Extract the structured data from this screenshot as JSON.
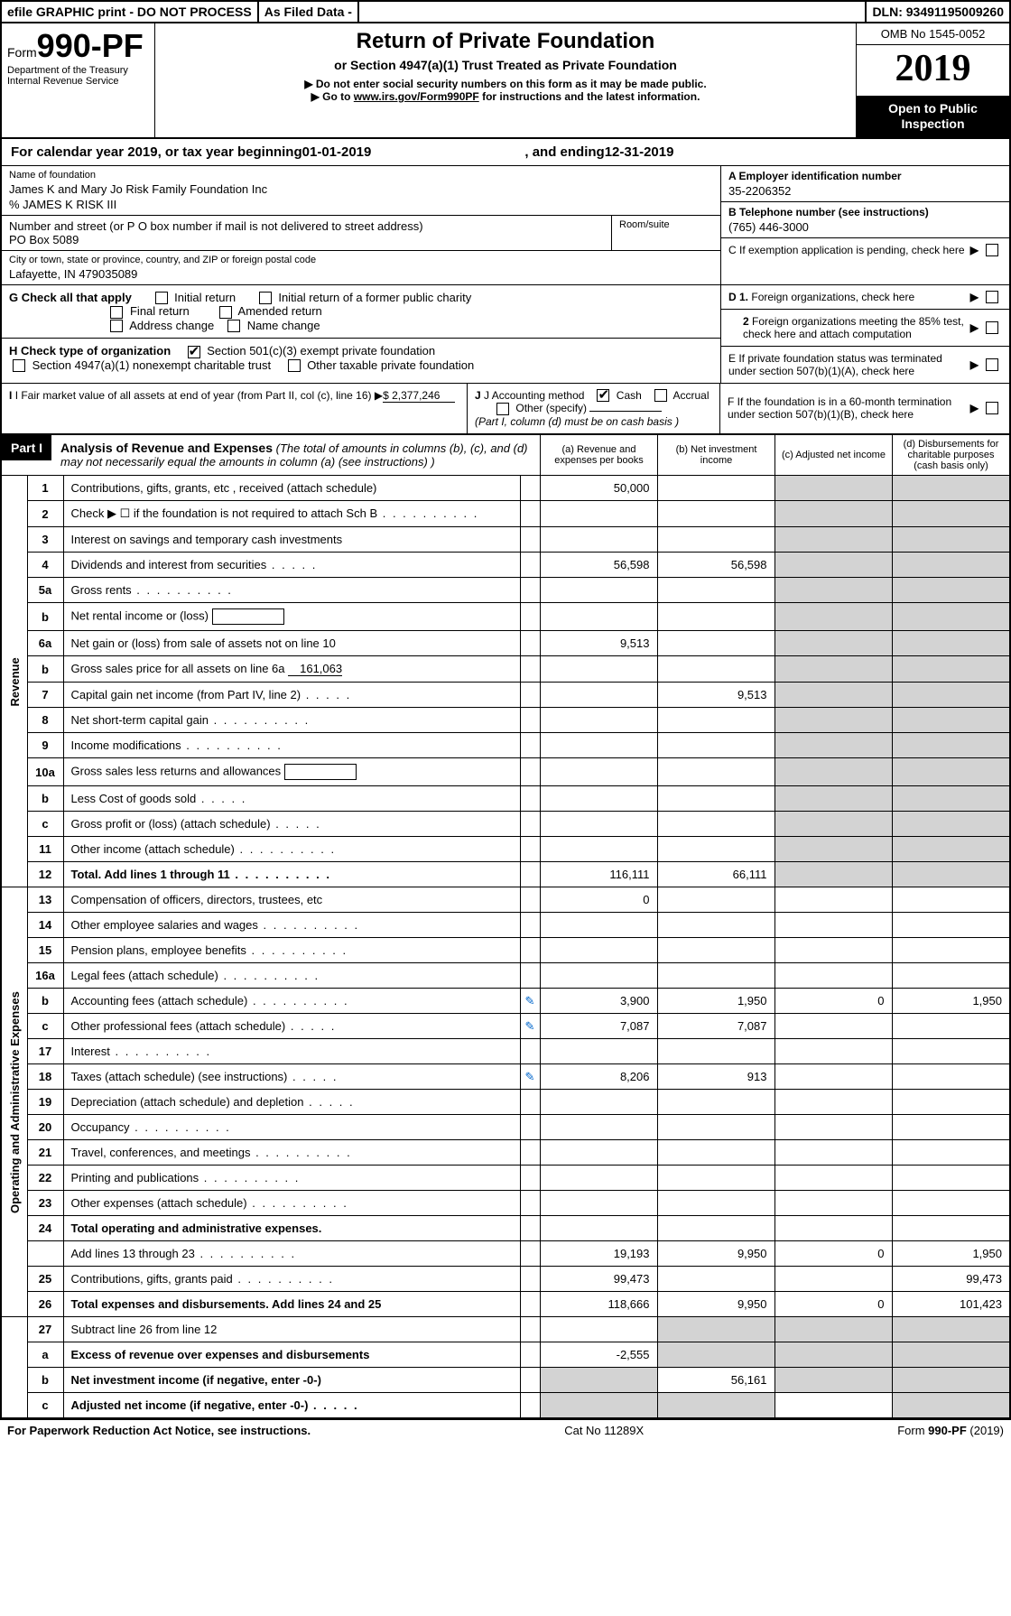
{
  "topbar": {
    "efile": "efile GRAPHIC print - DO NOT PROCESS",
    "asfiled": "As Filed Data -",
    "dln": "DLN: 93491195009260"
  },
  "header": {
    "form_prefix": "Form",
    "form_num": "990-PF",
    "dept": "Department of the Treasury",
    "irs": "Internal Revenue Service",
    "title": "Return of Private Foundation",
    "subtitle": "or Section 4947(a)(1) Trust Treated as Private Foundation",
    "instr1": "▶ Do not enter social security numbers on this form as it may be made public.",
    "instr2_pre": "▶ Go to ",
    "instr2_link": "www.irs.gov/Form990PF",
    "instr2_post": " for instructions and the latest information.",
    "omb": "OMB No 1545-0052",
    "year": "2019",
    "inspect": "Open to Public Inspection"
  },
  "cal": {
    "pre": "For calendar year 2019, or tax year beginning ",
    "begin": "01-01-2019",
    "mid": " , and ending ",
    "end": "12-31-2019"
  },
  "foundation": {
    "name_lbl": "Name of foundation",
    "name": "James K and Mary Jo Risk Family Foundation Inc",
    "care_of": "% JAMES K RISK III",
    "addr_lbl": "Number and street (or P O  box number if mail is not delivered to street address)",
    "addr": "PO Box 5089",
    "room_lbl": "Room/suite",
    "city_lbl": "City or town, state or province, country, and ZIP or foreign postal code",
    "city": "Lafayette, IN  479035089"
  },
  "right_info": {
    "a_lbl": "A Employer identification number",
    "a_val": "35-2206352",
    "b_lbl": "B Telephone number (see instructions)",
    "b_val": "(765) 446-3000",
    "c_lbl": "C If exemption application is pending, check here",
    "d1": "D 1. Foreign organizations, check here",
    "d2": "2 Foreign organizations meeting the 85% test, check here and attach computation",
    "e": "E  If private foundation status was terminated under section 507(b)(1)(A), check here",
    "f": "F  If the foundation is in a 60-month termination under section 507(b)(1)(B), check here"
  },
  "g": {
    "label": "G Check all that apply",
    "opts": [
      "Initial return",
      "Initial return of a former public charity",
      "Final return",
      "Amended return",
      "Address change",
      "Name change"
    ]
  },
  "h": {
    "label": "H Check type of organization",
    "opt1": "Section 501(c)(3) exempt private foundation",
    "opt2": "Section 4947(a)(1) nonexempt charitable trust",
    "opt3": "Other taxable private foundation"
  },
  "i": {
    "label": "I Fair market value of all assets at end of year (from Part II, col  (c), line 16)",
    "value": "$  2,377,246"
  },
  "j": {
    "label": "J Accounting method",
    "cash": "Cash",
    "accrual": "Accrual",
    "other": "Other (specify)",
    "note": "(Part I, column (d) must be on cash basis )"
  },
  "part1": {
    "label": "Part I",
    "title": "Analysis of Revenue and Expenses",
    "note": "(The total of amounts in columns (b), (c), and (d) may not necessarily equal the amounts in column (a) (see instructions) )",
    "col_a": "(a) Revenue and expenses per books",
    "col_b": "(b) Net investment income",
    "col_c": "(c) Adjusted net income",
    "col_d": "(d) Disbursements for charitable purposes (cash basis only)"
  },
  "sections": {
    "revenue": "Revenue",
    "expenses": "Operating and Administrative Expenses"
  },
  "rows": [
    {
      "n": "1",
      "d": "Contributions, gifts, grants, etc , received (attach schedule)",
      "a": "50,000",
      "b": "",
      "c": "",
      "dd": ""
    },
    {
      "n": "2",
      "d": "Check ▶ ☐ if the foundation is not required to attach Sch B",
      "dots": true
    },
    {
      "n": "3",
      "d": "Interest on savings and temporary cash investments"
    },
    {
      "n": "4",
      "d": "Dividends and interest from securities",
      "dots": "short",
      "a": "56,598",
      "b": "56,598"
    },
    {
      "n": "5a",
      "d": "Gross rents",
      "dots": true
    },
    {
      "n": "b",
      "d": "Net rental income or (loss)",
      "inline": true
    },
    {
      "n": "6a",
      "d": "Net gain or (loss) from sale of assets not on line 10",
      "a": "9,513"
    },
    {
      "n": "b",
      "d": "Gross sales price for all assets on line 6a",
      "inlineval": "161,063"
    },
    {
      "n": "7",
      "d": "Capital gain net income (from Part IV, line 2)",
      "dots": "short",
      "b": "9,513"
    },
    {
      "n": "8",
      "d": "Net short-term capital gain",
      "dots": true
    },
    {
      "n": "9",
      "d": "Income modifications",
      "dots": true
    },
    {
      "n": "10a",
      "d": "Gross sales less returns and allowances",
      "inline": true
    },
    {
      "n": "b",
      "d": "Less  Cost of goods sold",
      "dots": "short",
      "inline": true
    },
    {
      "n": "c",
      "d": "Gross profit or (loss) (attach schedule)",
      "dots": "short"
    },
    {
      "n": "11",
      "d": "Other income (attach schedule)",
      "dots": true
    },
    {
      "n": "12",
      "d": "Total. Add lines 1 through 11",
      "bold": true,
      "dots": true,
      "a": "116,111",
      "b": "66,111"
    }
  ],
  "exp_rows": [
    {
      "n": "13",
      "d": "Compensation of officers, directors, trustees, etc",
      "a": "0"
    },
    {
      "n": "14",
      "d": "Other employee salaries and wages",
      "dots": true
    },
    {
      "n": "15",
      "d": "Pension plans, employee benefits",
      "dots": true
    },
    {
      "n": "16a",
      "d": "Legal fees (attach schedule)",
      "dots": true
    },
    {
      "n": "b",
      "d": "Accounting fees (attach schedule)",
      "dots": true,
      "icon": true,
      "a": "3,900",
      "b": "1,950",
      "c": "0",
      "dd": "1,950"
    },
    {
      "n": "c",
      "d": "Other professional fees (attach schedule)",
      "dots": "short",
      "icon": true,
      "a": "7,087",
      "b": "7,087"
    },
    {
      "n": "17",
      "d": "Interest",
      "dots": true
    },
    {
      "n": "18",
      "d": "Taxes (attach schedule) (see instructions)",
      "dots": "short",
      "icon": true,
      "a": "8,206",
      "b": "913"
    },
    {
      "n": "19",
      "d": "Depreciation (attach schedule) and depletion",
      "dots": "short"
    },
    {
      "n": "20",
      "d": "Occupancy",
      "dots": true
    },
    {
      "n": "21",
      "d": "Travel, conferences, and meetings",
      "dots": true
    },
    {
      "n": "22",
      "d": "Printing and publications",
      "dots": true
    },
    {
      "n": "23",
      "d": "Other expenses (attach schedule)",
      "dots": true
    },
    {
      "n": "24",
      "d": "Total operating and administrative expenses.",
      "bold": true
    },
    {
      "n": "",
      "d": "Add lines 13 through 23",
      "dots": true,
      "a": "19,193",
      "b": "9,950",
      "c": "0",
      "dd": "1,950"
    },
    {
      "n": "25",
      "d": "Contributions, gifts, grants paid",
      "dots": true,
      "a": "99,473",
      "dd": "99,473"
    },
    {
      "n": "26",
      "d": "Total expenses and disbursements. Add lines 24 and 25",
      "bold": true,
      "a": "118,666",
      "b": "9,950",
      "c": "0",
      "dd": "101,423"
    }
  ],
  "net_rows": [
    {
      "n": "27",
      "d": "Subtract line 26 from line 12"
    },
    {
      "n": "a",
      "d": "Excess of revenue over expenses and disbursements",
      "bold": true,
      "a": "-2,555"
    },
    {
      "n": "b",
      "d": "Net investment income (if negative, enter -0-)",
      "bold": true,
      "b": "56,161"
    },
    {
      "n": "c",
      "d": "Adjusted net income (if negative, enter -0-)",
      "bold": true,
      "dots": "short"
    }
  ],
  "footer": {
    "left": "For Paperwork Reduction Act Notice, see instructions.",
    "mid": "Cat  No  11289X",
    "right": "Form 990-PF (2019)"
  }
}
